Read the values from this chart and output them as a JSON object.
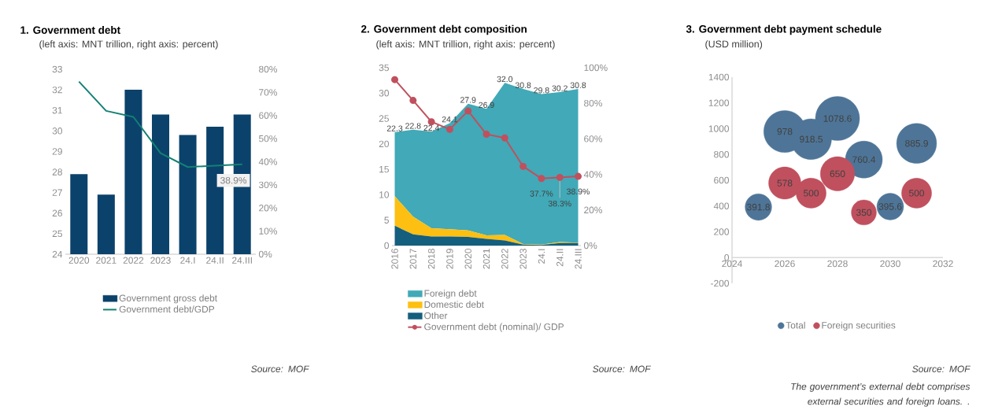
{
  "chart_data": [
    {
      "type": "bar",
      "title": "1. Government debt",
      "subtitle": "(left axis: MNT trillion, right axis: percent)",
      "annotations": [
        "Source: MOF"
      ],
      "categories": [
        "2020",
        "2021",
        "2022",
        "2023",
        "24.I",
        "24.II",
        "24.III"
      ],
      "ylim": [
        24,
        33
      ],
      "yticks": [
        24,
        25,
        26,
        27,
        28,
        29,
        30,
        31,
        32,
        33
      ],
      "y2lim": [
        0,
        80
      ],
      "y2ticks": [
        {
          "value": 0,
          "label": "0%"
        },
        {
          "value": 10,
          "label": "10%"
        },
        {
          "value": 20,
          "label": "20%"
        },
        {
          "value": 30,
          "label": "30%"
        },
        {
          "value": 40,
          "label": "40%"
        },
        {
          "value": 50,
          "label": "50%"
        },
        {
          "value": 60,
          "label": "60%"
        },
        {
          "value": 70,
          "label": "70%"
        },
        {
          "value": 80,
          "label": "80%"
        }
      ],
      "legend": "bottom",
      "series": [
        {
          "name": "Government gross debt",
          "color": "#0b426b",
          "values": [
            27.9,
            26.9,
            32.0,
            30.8,
            29.8,
            30.2,
            30.8
          ]
        },
        {
          "name": "Government debt/GDP",
          "type": "line",
          "axis": "y2",
          "color": "#138075",
          "values": [
            74.7,
            62.0,
            59.4,
            43.7,
            37.7,
            38.3,
            38.9
          ],
          "value_labels": [
            null,
            null,
            null,
            null,
            null,
            null,
            "38.9%"
          ]
        }
      ]
    },
    {
      "type": "area",
      "stacked": true,
      "title": "2. Government debt composition",
      "subtitle": "(left axis: MNT trillion, right axis: percent)",
      "annotations": [
        "Source: MOF"
      ],
      "categories": [
        "2016",
        "2017",
        "2018",
        "2019",
        "2020",
        "2021",
        "2022",
        "2023",
        "24.I",
        "24.II",
        "24.III"
      ],
      "ylim": [
        0,
        35
      ],
      "yticks": [
        0,
        5,
        10,
        15,
        20,
        25,
        30,
        35
      ],
      "y2lim": [
        0,
        100
      ],
      "y2ticks": [
        {
          "value": 0,
          "label": "0%"
        },
        {
          "value": 20,
          "label": "20%"
        },
        {
          "value": 40,
          "label": "40%"
        },
        {
          "value": 60,
          "label": "60%"
        },
        {
          "value": 80,
          "label": "80%"
        },
        {
          "value": 100,
          "label": "100%"
        }
      ],
      "legend": "bottom",
      "totals": [
        "22.3",
        "22.8",
        "22.4",
        "24.1",
        "27.9",
        "26.9",
        "32.0",
        "30.8",
        "29.8",
        "30.2",
        "30.8"
      ],
      "series": [
        {
          "name": "Other",
          "color": "#145e7e",
          "values": [
            3.9,
            2.2,
            1.8,
            1.8,
            1.7,
            1.3,
            1.0,
            0.2,
            0.1,
            0.5,
            0.5
          ]
        },
        {
          "name": "Domestic debt",
          "color": "#fdbf11",
          "values": [
            5.8,
            3.5,
            1.6,
            1.4,
            1.3,
            0.7,
            1.1,
            0.1,
            0.1,
            0.2,
            0.1
          ]
        },
        {
          "name": "Foreign debt",
          "color": "#41a9b7",
          "values": [
            12.6,
            17.1,
            19.0,
            20.9,
            24.9,
            24.9,
            29.9,
            30.5,
            29.6,
            29.5,
            30.2
          ]
        },
        {
          "name": "Government debt (nominal)/ GDP",
          "type": "line",
          "axis": "y2",
          "marker": "circle",
          "color": "#c0505e",
          "values": [
            93.3,
            81.6,
            69.6,
            65.3,
            75.7,
            62.6,
            60.5,
            44.5,
            37.7,
            38.3,
            38.9
          ],
          "value_labels": [
            null,
            null,
            null,
            null,
            null,
            null,
            null,
            null,
            "37.7%",
            "38.3%",
            "38.9%"
          ]
        }
      ]
    },
    {
      "type": "bubble",
      "title": "3. Government debt payment schedule",
      "subtitle": "(USD million)",
      "annotations": [
        "Source: MOF",
        "The government’s external debt comprises external securities and foreign loans. ."
      ],
      "xlim": [
        2024,
        2032
      ],
      "xticks": [
        2024,
        2026,
        2028,
        2030,
        2032
      ],
      "ylim": [
        -200,
        1400
      ],
      "yticks": [
        -200,
        0,
        200,
        400,
        600,
        800,
        1000,
        1200,
        1400
      ],
      "legend": "bottom",
      "data_labels": true,
      "series": [
        {
          "name": "Total",
          "color": "#4e7597",
          "x": [
            2025,
            2026,
            2027,
            2028,
            2029,
            2030,
            2031
          ],
          "values": [
            391.8,
            978,
            918.5,
            1078.6,
            760.4,
            395.6,
            885.9
          ],
          "sizes": [
            0.363,
            0.907,
            0.852,
            1,
            0.705,
            0.367,
            0.821
          ]
        },
        {
          "name": "Foreign securities",
          "color": "#c0505e",
          "x": [
            2026,
            2027,
            2028,
            2029,
            2031
          ],
          "values": [
            578,
            500,
            650,
            350,
            500
          ],
          "sizes": [
            0.536,
            0.464,
            0.603,
            0.324,
            0.464
          ]
        }
      ]
    }
  ]
}
